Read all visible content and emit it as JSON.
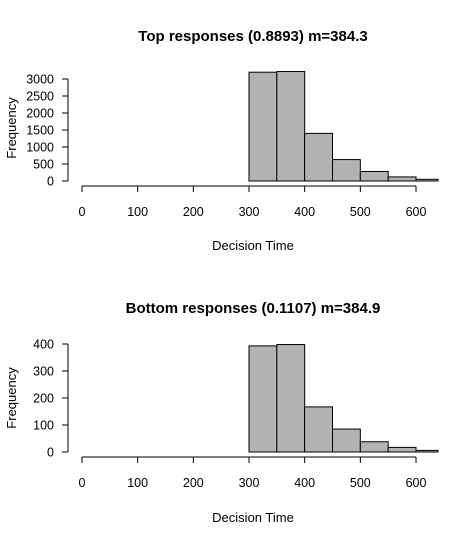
{
  "chart_data": [
    {
      "type": "bar",
      "title": "Top responses (0.8893) m=384.3",
      "xlabel": "Decision Time",
      "ylabel": "Frequency",
      "xlim": [
        0,
        640
      ],
      "ylim": [
        0,
        3000
      ],
      "xticks": [
        "0",
        "100",
        "200",
        "300",
        "400",
        "500",
        "600"
      ],
      "xtick_values": [
        0,
        100,
        200,
        300,
        400,
        500,
        600
      ],
      "yticks": [
        "0",
        "500",
        "1000",
        "1500",
        "2000",
        "2500",
        "3000"
      ],
      "ytick_values": [
        0,
        500,
        1000,
        1500,
        2000,
        2500,
        3000
      ],
      "bins": [
        {
          "x0": 300,
          "x1": 350,
          "value": 3200
        },
        {
          "x0": 350,
          "x1": 400,
          "value": 3220
        },
        {
          "x0": 400,
          "x1": 450,
          "value": 1400
        },
        {
          "x0": 450,
          "x1": 500,
          "value": 630
        },
        {
          "x0": 500,
          "x1": 550,
          "value": 280
        },
        {
          "x0": 550,
          "x1": 600,
          "value": 120
        },
        {
          "x0": 600,
          "x1": 650,
          "value": 50
        }
      ]
    },
    {
      "type": "bar",
      "title": "Bottom responses (0.1107) m=384.9",
      "xlabel": "Decision Time",
      "ylabel": "Frequency",
      "xlim": [
        0,
        640
      ],
      "ylim": [
        0,
        400
      ],
      "xticks": [
        "0",
        "100",
        "200",
        "300",
        "400",
        "500",
        "600"
      ],
      "xtick_values": [
        0,
        100,
        200,
        300,
        400,
        500,
        600
      ],
      "yticks": [
        "0",
        "100",
        "200",
        "300",
        "400"
      ],
      "ytick_values": [
        0,
        100,
        200,
        300,
        400
      ],
      "bins": [
        {
          "x0": 300,
          "x1": 350,
          "value": 393
        },
        {
          "x0": 350,
          "x1": 400,
          "value": 398
        },
        {
          "x0": 400,
          "x1": 450,
          "value": 167
        },
        {
          "x0": 450,
          "x1": 500,
          "value": 85
        },
        {
          "x0": 500,
          "x1": 550,
          "value": 38
        },
        {
          "x0": 550,
          "x1": 600,
          "value": 17
        },
        {
          "x0": 600,
          "x1": 650,
          "value": 6
        }
      ]
    }
  ]
}
